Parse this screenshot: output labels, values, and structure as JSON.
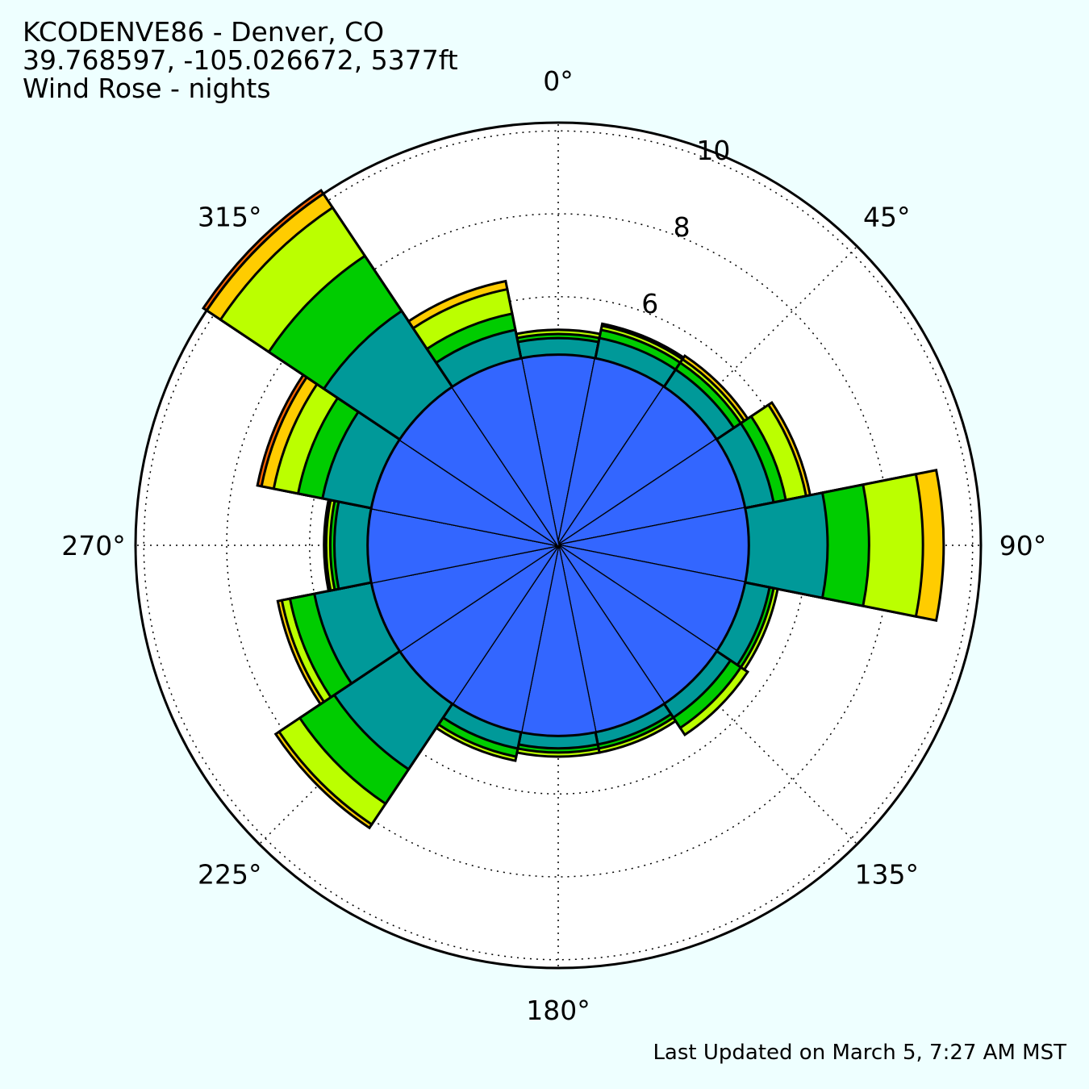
{
  "header": {
    "station": "KCODENVE86 - Denver, CO",
    "location": "39.768597, -105.026672, 5377ft",
    "subtitle": "Wind Rose - nights"
  },
  "footer": {
    "updated": "Last Updated on March 5, 7:27 AM MST"
  },
  "chart_data": {
    "type": "wind-rose",
    "direction_convention": "clockwise from north (0° at top)",
    "sector_width_deg": 22.5,
    "radial_ticks": [
      6,
      8,
      10
    ],
    "radial_max": 10.2,
    "angle_ticks": [
      0,
      45,
      90,
      135,
      180,
      225,
      270,
      315
    ],
    "angle_tick_labels": [
      "0°",
      "45°",
      "90°",
      "135°",
      "180°",
      "225°",
      "270°",
      "315°"
    ],
    "grid": true,
    "band_colors": [
      "#3366FF",
      "#009999",
      "#00CC00",
      "#BBFF00",
      "#FFCC00",
      "#FF6600"
    ],
    "directions": [
      0,
      22.5,
      45,
      67.5,
      90,
      112.5,
      135,
      157.5,
      180,
      202.5,
      225,
      247.5,
      270,
      292.5,
      315,
      337.5
    ],
    "cumulative_radii": [
      [
        4.6,
        5.0,
        5.1,
        5.2
      ],
      [
        4.6,
        5.1,
        5.3,
        5.4,
        5.45
      ],
      [
        4.6,
        5.1,
        5.3,
        5.4,
        5.5
      ],
      [
        4.6,
        5.3,
        5.6,
        6.1,
        6.2
      ],
      [
        4.6,
        6.5,
        7.5,
        8.8,
        9.3
      ],
      [
        4.6,
        5.2,
        5.3,
        5.4
      ],
      [
        4.6,
        5.0,
        5.3,
        5.5
      ],
      [
        4.6,
        4.9,
        5.0,
        5.1
      ],
      [
        4.6,
        4.9,
        5.0,
        5.1
      ],
      [
        4.6,
        5.0,
        5.2,
        5.3
      ],
      [
        4.6,
        6.5,
        7.5,
        8.1,
        8.2
      ],
      [
        4.6,
        6.0,
        6.6,
        6.8,
        6.9
      ],
      [
        4.6,
        5.4,
        5.5,
        5.6,
        5.65
      ],
      [
        4.6,
        5.8,
        6.4,
        7.0,
        7.3,
        7.4
      ],
      [
        4.6,
        6.8,
        8.4,
        9.8,
        10.2,
        10.3
      ],
      [
        4.6,
        5.3,
        5.7,
        6.3,
        6.5
      ]
    ]
  }
}
